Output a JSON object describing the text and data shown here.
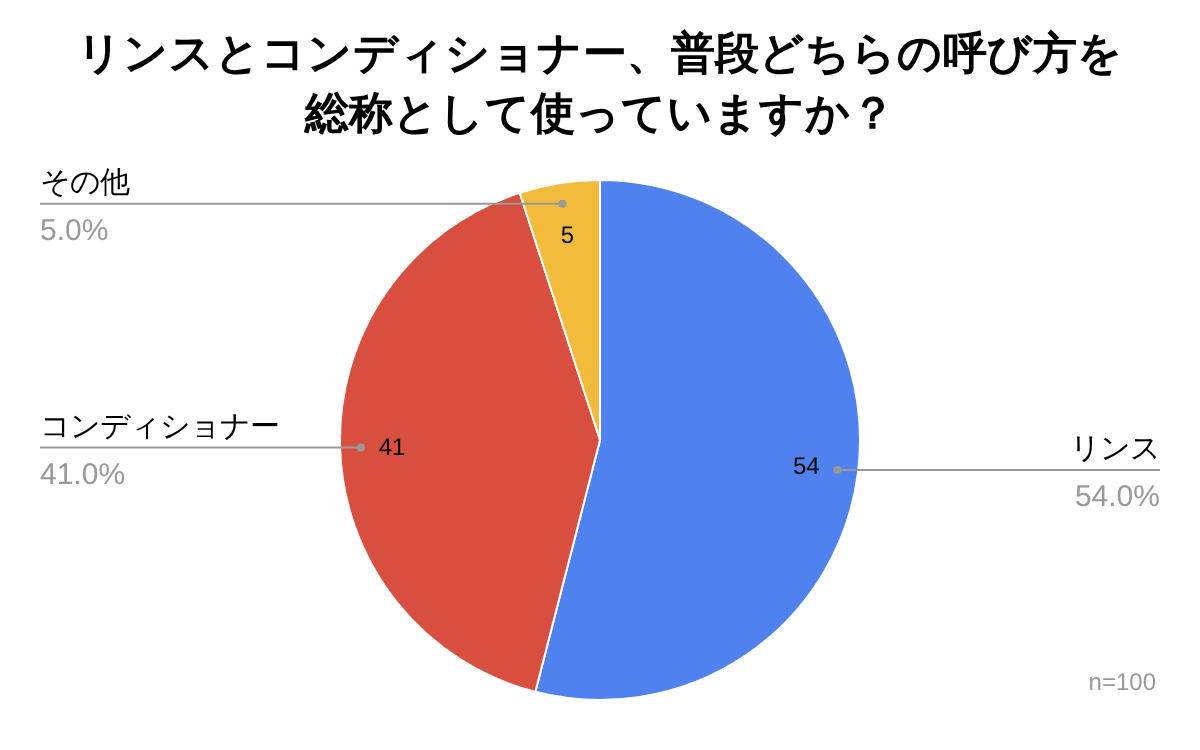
{
  "chart_data": {
    "type": "pie",
    "title": "リンスとコンディショナー、普段どちらの呼び方を総称として使っていますか？",
    "categories": [
      "リンス",
      "コンディショナー",
      "その他"
    ],
    "values": [
      54,
      41,
      5
    ],
    "colors": [
      "#4f82ee",
      "#d94f3f",
      "#f3bb3c"
    ],
    "data_labels": true,
    "annotations": [
      {
        "text": "54.0%",
        "x": "リンス"
      },
      {
        "text": "41.0%",
        "x": "コンディショナー"
      },
      {
        "text": "5.0%",
        "x": "その他"
      },
      "n=100"
    ]
  }
}
